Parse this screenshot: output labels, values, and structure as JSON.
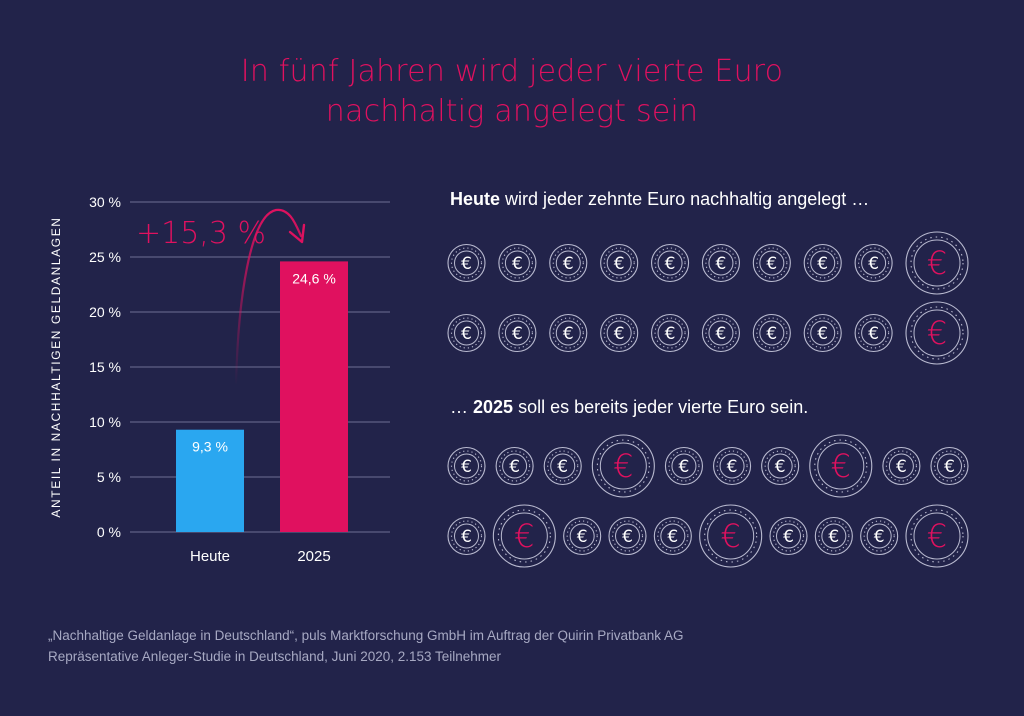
{
  "title": {
    "line1": "In fünf Jahren wird jeder vierte Euro",
    "line2": "nachhaltig angelegt sein"
  },
  "colors": {
    "background": "#22234a",
    "accent": "#e0115f",
    "bar_today": "#2aa7f0",
    "bar_2025": "#e0115f",
    "coin_outline": "#b9bad0"
  },
  "chart_data": {
    "type": "bar",
    "categories": [
      "Heute",
      "2025"
    ],
    "values": [
      9.3,
      24.6
    ],
    "value_labels": [
      "9,3  %",
      "24,6  %"
    ],
    "ylabel": "ANTEIL IN NACHHALTIGEN GELDANLAGEN",
    "ylim": [
      0,
      30
    ],
    "yticks": [
      0,
      5,
      10,
      15,
      20,
      25,
      30
    ],
    "ytick_labels": [
      "0 %",
      "5 %",
      "10 %",
      "15 %",
      "20 %",
      "25 %",
      "30 %"
    ],
    "grid": true,
    "annotation": "+15,3 %"
  },
  "coins": {
    "today": {
      "caption_bold": "Heute",
      "caption_rest": " wird jeder zehnte Euro nachhaltig angelegt …",
      "rows": [
        [
          0,
          0,
          0,
          0,
          0,
          0,
          0,
          0,
          0,
          1
        ],
        [
          0,
          0,
          0,
          0,
          0,
          0,
          0,
          0,
          0,
          1
        ]
      ]
    },
    "future": {
      "caption_pre": "… ",
      "caption_bold": "2025",
      "caption_rest": " soll es bereits jeder vierte Euro sein.",
      "rows": [
        [
          0,
          0,
          0,
          1,
          0,
          0,
          0,
          1,
          0,
          0
        ],
        [
          0,
          1,
          0,
          0,
          0,
          1,
          0,
          0,
          0,
          1
        ]
      ]
    },
    "symbol": "€"
  },
  "source": {
    "line1": "„Nachhaltige Geldanlage in Deutschland“, puls Marktforschung GmbH im Auftrag der Quirin Privatbank AG",
    "line2": "Repräsentative Anleger-Studie in Deutschland, Juni 2020, 2.153 Teilnehmer"
  }
}
